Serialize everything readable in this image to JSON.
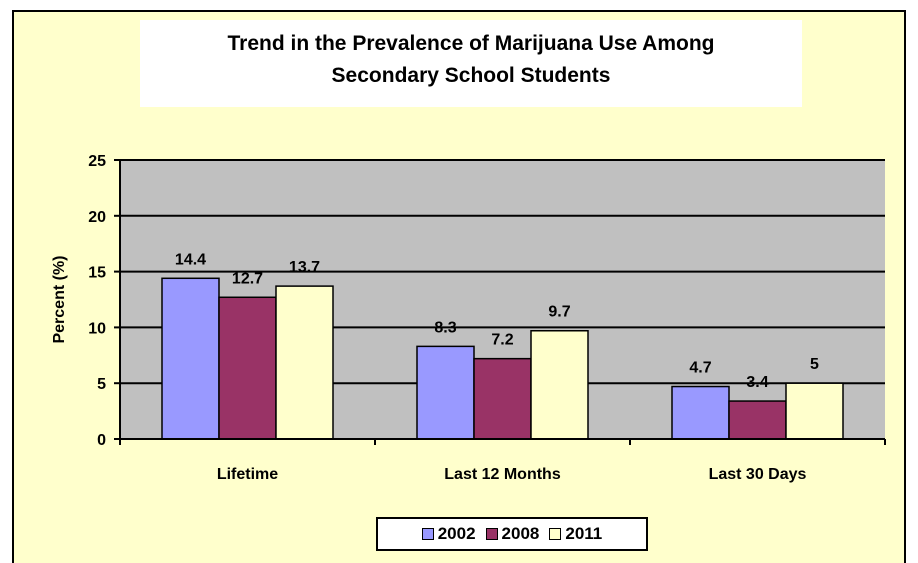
{
  "colors": {
    "background": "#ffffcc",
    "plot_area": "#c0c0c0",
    "series_2002": "#9999ff",
    "series_2008": "#993366",
    "series_2011": "#ffffcc"
  },
  "chart_data": {
    "type": "bar",
    "title": "Trend in the Prevalence of Marijuana Use Among Secondary School Students",
    "title_lines": [
      "Trend in the Prevalence of Marijuana Use Among",
      "Secondary School Students"
    ],
    "xlabel": "",
    "ylabel": "Percent (%)",
    "ylim": [
      0,
      25
    ],
    "yticks": [
      0,
      5,
      10,
      15,
      20,
      25
    ],
    "grid": true,
    "legend_position": "bottom",
    "categories": [
      "Lifetime",
      "Last 12 Months",
      "Last 30 Days"
    ],
    "series": [
      {
        "name": "2002",
        "values": [
          14.4,
          8.3,
          4.7
        ],
        "labels": [
          "14.4",
          "8.3",
          "4.7"
        ],
        "color": "#9999ff"
      },
      {
        "name": "2008",
        "values": [
          12.7,
          7.2,
          3.4
        ],
        "labels": [
          "12.7",
          "7.2",
          "3.4"
        ],
        "color": "#993366"
      },
      {
        "name": "2011",
        "values": [
          13.7,
          9.7,
          5.0
        ],
        "labels": [
          "13.7",
          "9.7",
          "5"
        ],
        "color": "#ffffcc"
      }
    ]
  }
}
